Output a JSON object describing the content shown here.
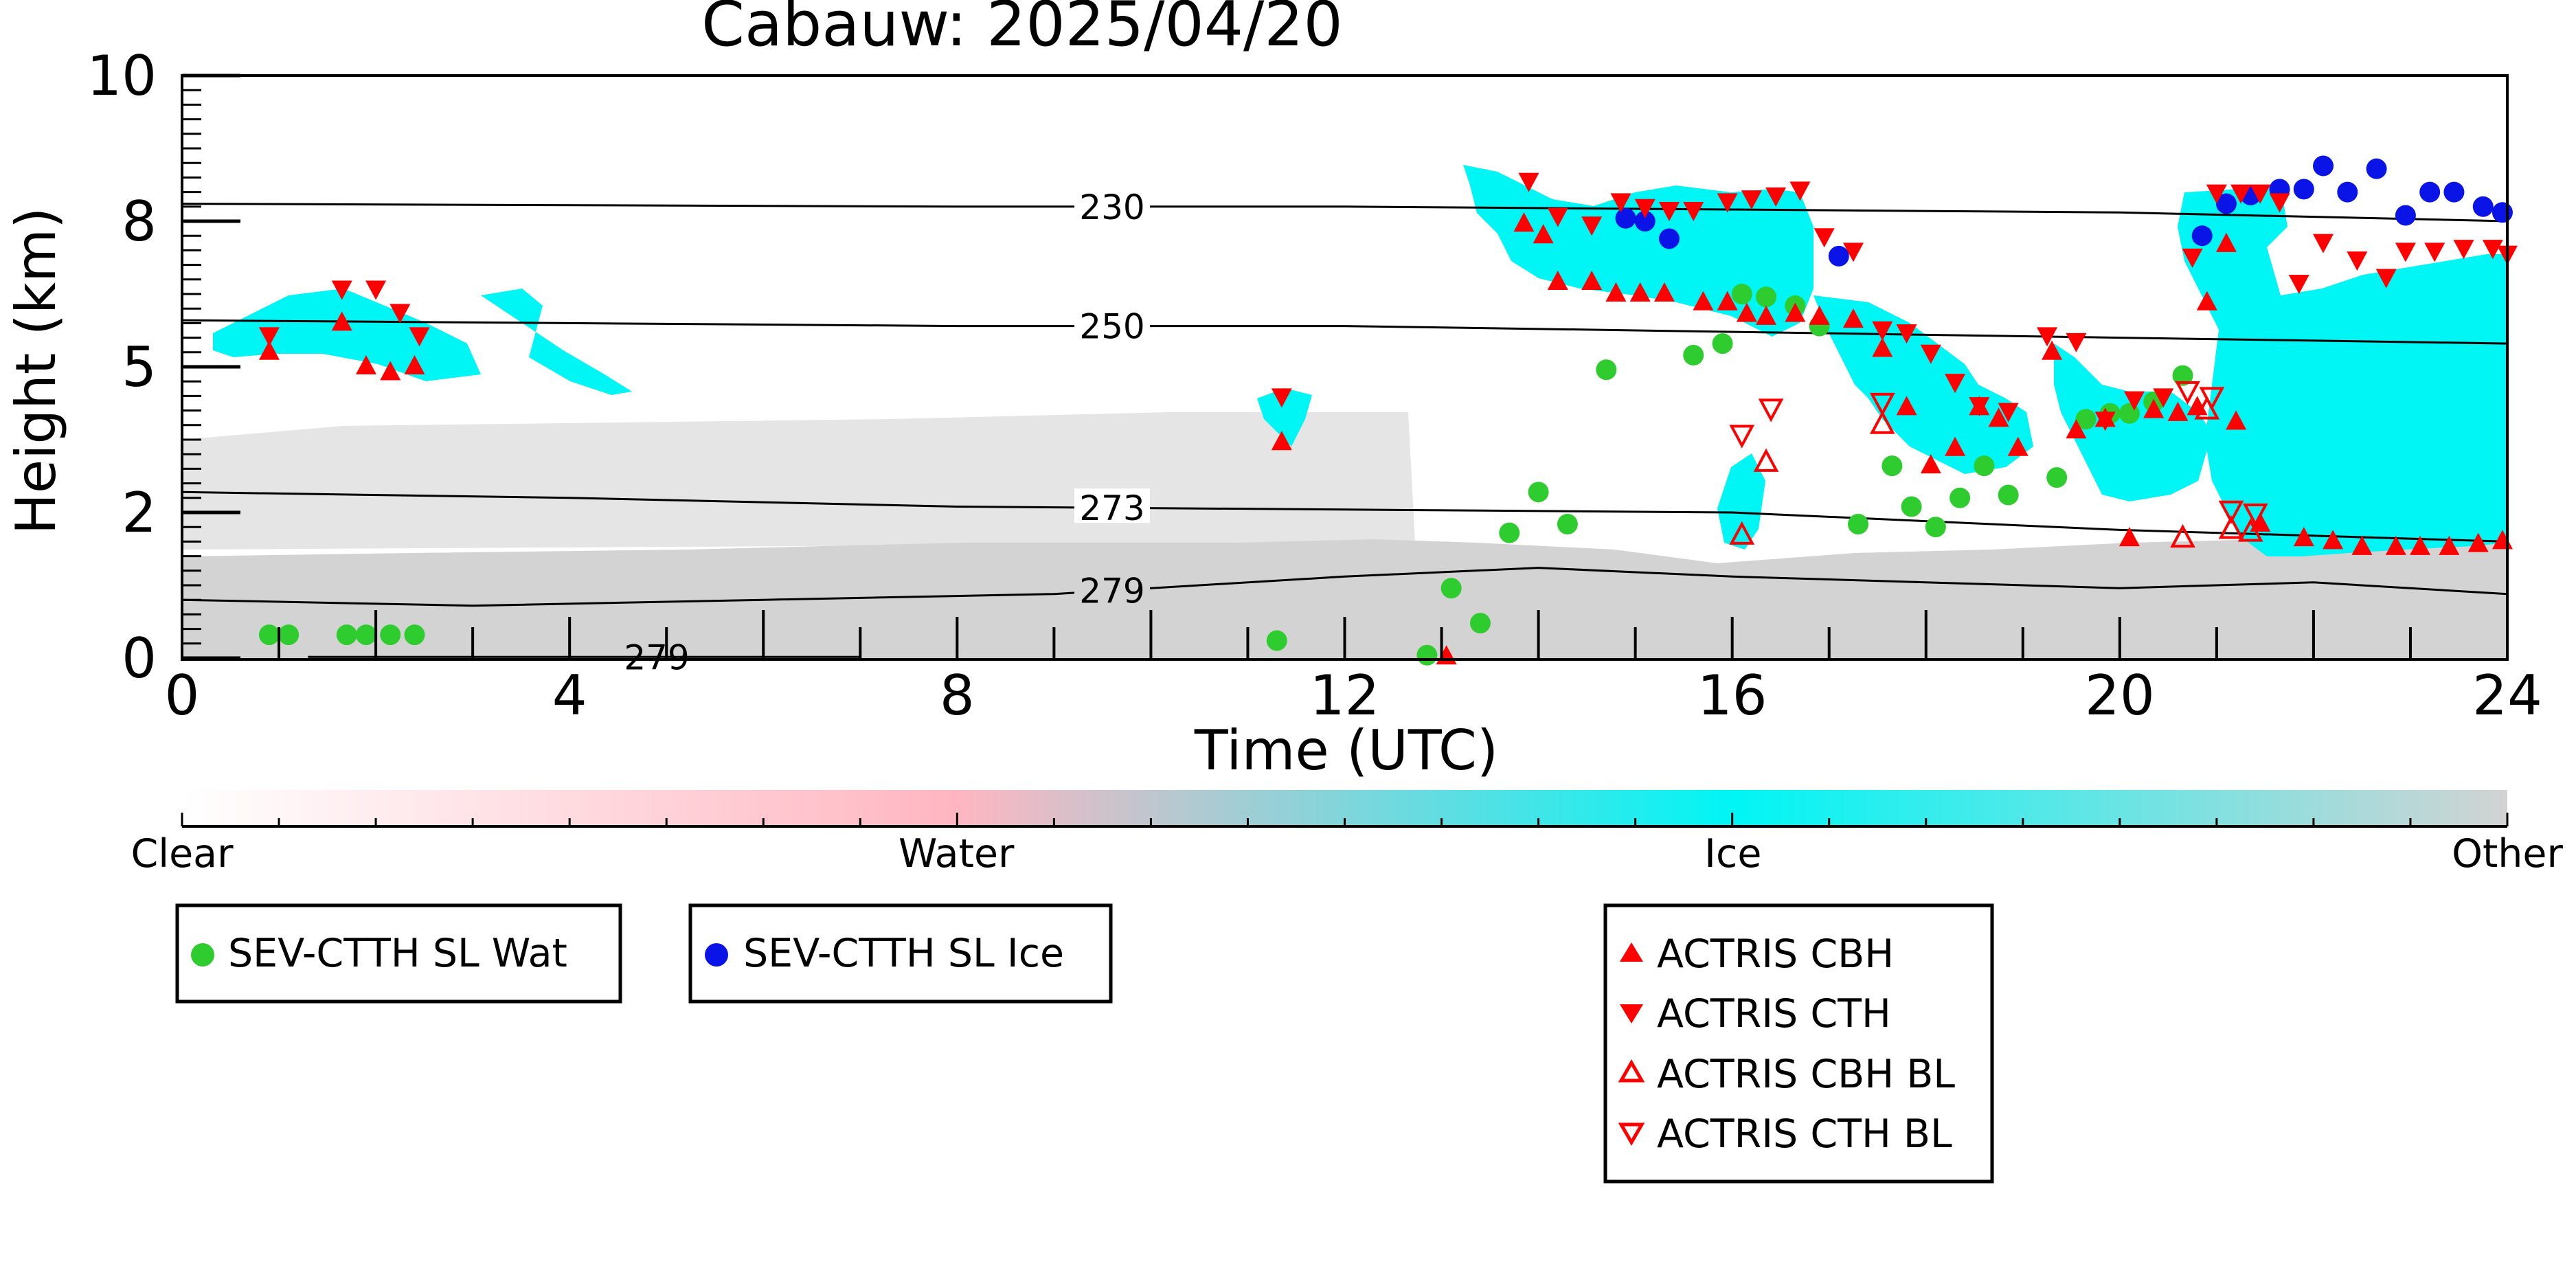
{
  "chart_data": {
    "type": "scatter",
    "title": "Cabauw: 2025/04/20",
    "xlabel": "Time (UTC)",
    "ylabel": "Height (km)",
    "xlim": [
      0,
      24
    ],
    "ylim": [
      0,
      10
    ],
    "x_ticks": [
      "0",
      "4",
      "8",
      "12",
      "16",
      "20",
      "24"
    ],
    "x_tick_values": [
      0,
      4,
      8,
      12,
      16,
      20,
      24
    ],
    "y_ticks": [
      "0",
      "2",
      "5",
      "8",
      "10"
    ],
    "y_tick_values": [
      0,
      2.5,
      5,
      7.5,
      10
    ],
    "background_classes": {
      "colorbar_labels": [
        "Clear",
        "Water",
        "Ice",
        "Other"
      ],
      "colorbar_positions": [
        0,
        0.333,
        0.667,
        1.0
      ],
      "colors": {
        "Clear": "#ffffff",
        "Water": "#ffb6c1",
        "Ice": "#00f5f5",
        "Other": "#d3d3d3"
      }
    },
    "isotherms": [
      {
        "label": "230",
        "points": [
          [
            0,
            7.8
          ],
          [
            8,
            7.75
          ],
          [
            12,
            7.75
          ],
          [
            16,
            7.7
          ],
          [
            20,
            7.65
          ],
          [
            24,
            7.5
          ]
        ]
      },
      {
        "label": "250",
        "points": [
          [
            0,
            5.8
          ],
          [
            8,
            5.7
          ],
          [
            12,
            5.7
          ],
          [
            16,
            5.6
          ],
          [
            20,
            5.5
          ],
          [
            24,
            5.4
          ]
        ]
      },
      {
        "label": "273",
        "points": [
          [
            0,
            2.85
          ],
          [
            4,
            2.75
          ],
          [
            8,
            2.6
          ],
          [
            12,
            2.55
          ],
          [
            16,
            2.5
          ],
          [
            20,
            2.2
          ],
          [
            24,
            2.0
          ]
        ]
      },
      {
        "label": "279",
        "points": [
          [
            0,
            1.0
          ],
          [
            3,
            0.9
          ],
          [
            6,
            1.0
          ],
          [
            9,
            1.1
          ],
          [
            12,
            1.4
          ],
          [
            14,
            1.55
          ],
          [
            16,
            1.4
          ],
          [
            20,
            1.2
          ],
          [
            22,
            1.3
          ],
          [
            24,
            1.1
          ]
        ]
      },
      {
        "label": "279",
        "points": [
          [
            1.3,
            0.02
          ],
          [
            4.5,
            0.02
          ],
          [
            7,
            0.02
          ]
        ]
      }
    ],
    "series": [
      {
        "name": "SEV-CTTH SL Wat",
        "marker": "circle",
        "color": "#2ecc2e",
        "points": [
          [
            0.9,
            0.4
          ],
          [
            1.1,
            0.4
          ],
          [
            1.7,
            0.4
          ],
          [
            1.9,
            0.4
          ],
          [
            2.15,
            0.4
          ],
          [
            2.4,
            0.4
          ],
          [
            11.3,
            0.3
          ],
          [
            12.85,
            0.05
          ],
          [
            13.1,
            1.2
          ],
          [
            13.4,
            0.6
          ],
          [
            13.7,
            2.15
          ],
          [
            14.0,
            2.85
          ],
          [
            14.3,
            2.3
          ],
          [
            14.7,
            4.95
          ],
          [
            15.6,
            5.2
          ],
          [
            15.9,
            5.4
          ],
          [
            16.1,
            6.25
          ],
          [
            16.35,
            6.2
          ],
          [
            16.65,
            6.05
          ],
          [
            16.9,
            5.7
          ],
          [
            17.3,
            2.3
          ],
          [
            17.65,
            3.3
          ],
          [
            17.85,
            2.6
          ],
          [
            18.1,
            2.25
          ],
          [
            18.35,
            2.75
          ],
          [
            18.6,
            3.3
          ],
          [
            18.85,
            2.8
          ],
          [
            19.35,
            3.1
          ],
          [
            19.65,
            4.1
          ],
          [
            19.9,
            4.2
          ],
          [
            20.1,
            4.2
          ],
          [
            20.35,
            4.4
          ],
          [
            20.65,
            4.85
          ]
        ]
      },
      {
        "name": "SEV-CTTH SL Ice",
        "marker": "circle",
        "color": "#0a14e6",
        "points": [
          [
            14.9,
            7.55
          ],
          [
            15.1,
            7.5
          ],
          [
            15.35,
            7.2
          ],
          [
            17.1,
            6.9
          ],
          [
            20.85,
            7.25
          ],
          [
            21.1,
            7.8
          ],
          [
            21.35,
            7.95
          ],
          [
            21.65,
            8.05
          ],
          [
            21.9,
            8.05
          ],
          [
            22.1,
            8.45
          ],
          [
            22.35,
            8.0
          ],
          [
            22.65,
            8.4
          ],
          [
            22.95,
            7.6
          ],
          [
            23.2,
            8.0
          ],
          [
            23.45,
            8.0
          ],
          [
            23.75,
            7.75
          ],
          [
            23.95,
            7.65
          ]
        ]
      },
      {
        "name": "ACTRIS CBH",
        "marker": "triangle-up",
        "color": "#ff0000",
        "filled": true,
        "points": [
          [
            0.9,
            5.25
          ],
          [
            1.65,
            5.75
          ],
          [
            1.9,
            5.0
          ],
          [
            2.15,
            4.9
          ],
          [
            2.4,
            5.0
          ],
          [
            11.35,
            3.7
          ],
          [
            13.05,
            0.02
          ],
          [
            13.85,
            7.45
          ],
          [
            14.05,
            7.25
          ],
          [
            14.2,
            6.45
          ],
          [
            14.55,
            6.45
          ],
          [
            14.8,
            6.25
          ],
          [
            15.05,
            6.25
          ],
          [
            15.3,
            6.25
          ],
          [
            15.7,
            6.1
          ],
          [
            15.95,
            6.1
          ],
          [
            16.15,
            5.9
          ],
          [
            16.35,
            5.85
          ],
          [
            16.65,
            5.9
          ],
          [
            16.9,
            5.85
          ],
          [
            17.25,
            5.8
          ],
          [
            17.55,
            5.3
          ],
          [
            17.8,
            4.3
          ],
          [
            18.05,
            3.3
          ],
          [
            18.3,
            3.6
          ],
          [
            18.55,
            4.3
          ],
          [
            18.75,
            4.1
          ],
          [
            18.95,
            3.6
          ],
          [
            19.3,
            5.25
          ],
          [
            19.55,
            3.9
          ],
          [
            19.85,
            4.1
          ],
          [
            20.1,
            2.05
          ],
          [
            20.35,
            4.25
          ],
          [
            20.6,
            4.2
          ],
          [
            20.8,
            4.3
          ],
          [
            20.9,
            6.1
          ],
          [
            21.1,
            7.1
          ],
          [
            21.2,
            4.05
          ],
          [
            21.45,
            2.3
          ],
          [
            21.9,
            2.05
          ],
          [
            22.2,
            2.0
          ],
          [
            22.5,
            1.9
          ],
          [
            22.85,
            1.9
          ],
          [
            23.1,
            1.9
          ],
          [
            23.4,
            1.9
          ],
          [
            23.7,
            1.95
          ],
          [
            23.95,
            2.0
          ]
        ]
      },
      {
        "name": "ACTRIS CTH",
        "marker": "triangle-down",
        "color": "#ff0000",
        "filled": true,
        "points": [
          [
            0.9,
            5.55
          ],
          [
            1.65,
            6.35
          ],
          [
            2.0,
            6.35
          ],
          [
            2.25,
            5.95
          ],
          [
            2.45,
            5.55
          ],
          [
            11.35,
            4.5
          ],
          [
            13.9,
            8.2
          ],
          [
            14.2,
            7.6
          ],
          [
            14.55,
            7.45
          ],
          [
            14.85,
            7.85
          ],
          [
            15.1,
            7.75
          ],
          [
            15.35,
            7.7
          ],
          [
            15.6,
            7.7
          ],
          [
            15.95,
            7.85
          ],
          [
            16.2,
            7.9
          ],
          [
            16.45,
            7.95
          ],
          [
            16.7,
            8.05
          ],
          [
            16.95,
            7.25
          ],
          [
            17.25,
            7.0
          ],
          [
            17.55,
            5.65
          ],
          [
            17.8,
            5.6
          ],
          [
            18.05,
            5.25
          ],
          [
            18.3,
            4.75
          ],
          [
            18.55,
            4.35
          ],
          [
            18.85,
            4.25
          ],
          [
            19.25,
            5.55
          ],
          [
            19.55,
            5.45
          ],
          [
            19.85,
            4.1
          ],
          [
            20.15,
            4.45
          ],
          [
            20.45,
            4.5
          ],
          [
            20.75,
            6.9
          ],
          [
            21.0,
            8.0
          ],
          [
            21.25,
            8.0
          ],
          [
            21.45,
            8.0
          ],
          [
            21.65,
            7.85
          ],
          [
            21.85,
            6.45
          ],
          [
            22.1,
            7.15
          ],
          [
            22.45,
            6.85
          ],
          [
            22.75,
            6.55
          ],
          [
            22.95,
            7.0
          ],
          [
            23.25,
            7.0
          ],
          [
            23.55,
            7.05
          ],
          [
            23.85,
            7.05
          ],
          [
            24.0,
            6.95
          ]
        ]
      },
      {
        "name": "ACTRIS CBH BL",
        "marker": "triangle-up",
        "color": "#ff0000",
        "filled": false,
        "points": [
          [
            16.1,
            2.1
          ],
          [
            16.35,
            3.35
          ],
          [
            17.55,
            4.0
          ],
          [
            20.65,
            2.05
          ],
          [
            20.9,
            4.25
          ],
          [
            21.15,
            2.2
          ],
          [
            21.35,
            2.15
          ]
        ]
      },
      {
        "name": "ACTRIS CTH BL",
        "marker": "triangle-down",
        "color": "#ff0000",
        "filled": false,
        "points": [
          [
            16.1,
            3.85
          ],
          [
            16.4,
            4.3
          ],
          [
            17.55,
            4.4
          ],
          [
            20.7,
            4.6
          ],
          [
            20.95,
            4.5
          ],
          [
            21.15,
            2.55
          ],
          [
            21.4,
            2.5
          ]
        ]
      }
    ],
    "legends": [
      {
        "entries": [
          "SEV-CTTH SL Wat"
        ]
      },
      {
        "entries": [
          "SEV-CTTH SL Ice"
        ]
      },
      {
        "entries": [
          "ACTRIS CBH",
          "ACTRIS CTH",
          "ACTRIS CBH BL",
          "ACTRIS CTH BL"
        ]
      }
    ],
    "grid": false
  }
}
